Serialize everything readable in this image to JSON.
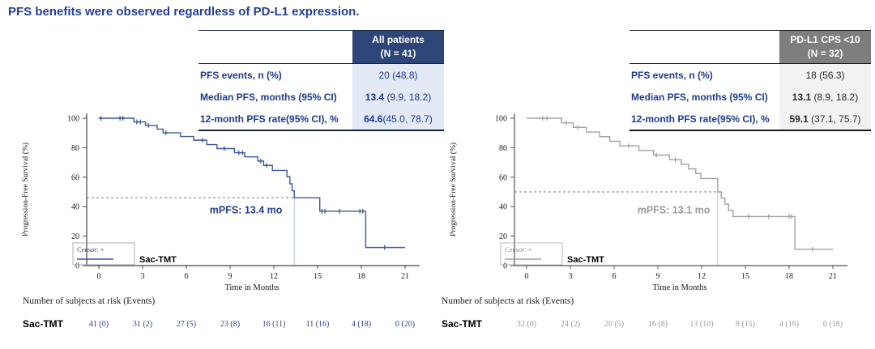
{
  "page": {
    "title": "PFS benefits were observed regardless of PD-L1 expression.",
    "title_color": "#243f94",
    "background": "#ffffff"
  },
  "summary_tables": [
    {
      "header": {
        "line1": "All patients",
        "line2": "(N = 41)"
      },
      "rows": [
        {
          "label": "PFS events, n (%)",
          "value_bold": "",
          "value_rest": "20 (48.8)"
        },
        {
          "label": "Median PFS, months (95% CI)",
          "value_bold": "13.4",
          "value_rest": " (9.9, 18.2)"
        },
        {
          "label": "12-month PFS rate(95% CI), %",
          "value_bold": "64.6",
          "value_rest": "(45.0, 78.7)"
        }
      ],
      "theme": {
        "header_bg": "#2d4577",
        "header_color": "#ffffff",
        "label_color": "#1e3a8c",
        "value_color": "#1e3a8c",
        "value_bg": "#e3eaf6",
        "border_color": "#16233f"
      }
    },
    {
      "header": {
        "line1": "PD-L1 CPS <10",
        "line2": "(N = 32)"
      },
      "rows": [
        {
          "label": "PFS events, n (%)",
          "value_bold": "",
          "value_rest": "18 (56.3)"
        },
        {
          "label": "Median PFS, months (95% CI)",
          "value_bold": "13.1",
          "value_rest": " (8.9, 18.2)"
        },
        {
          "label": "12-month PFS rate(95% CI), %",
          "value_bold": "59.1",
          "value_rest": " (37.1, 75.7)"
        }
      ],
      "theme": {
        "header_bg": "#7e7e7e",
        "header_color": "#ffffff",
        "label_color": "#1e3a8c",
        "value_color": "#2a2a2a",
        "value_bg": "#f2f2f2",
        "border_color": "#1a1a1a"
      }
    }
  ],
  "chart_data": [
    {
      "type": "line",
      "subtype": "kaplan-meier-step",
      "group": "All patients (N = 41)",
      "xlabel": "Time in Months",
      "ylabel": "Progression-Free Survival (%)",
      "xlim": [
        0,
        21
      ],
      "xticks": [
        0,
        3,
        6,
        9,
        12,
        15,
        18,
        21
      ],
      "ylim": [
        0,
        100
      ],
      "yticks": [
        0,
        20,
        40,
        60,
        80,
        100
      ],
      "series": [
        {
          "name": "Sac-TMT",
          "color": "#3c5898",
          "steps": [
            [
              0,
              100
            ],
            [
              2.4,
              97.5
            ],
            [
              3.2,
              95.1
            ],
            [
              4.0,
              92.6
            ],
            [
              4.4,
              90.1
            ],
            [
              5.6,
              87.6
            ],
            [
              6.5,
              85.1
            ],
            [
              7.4,
              82.1
            ],
            [
              8.1,
              79.4
            ],
            [
              9.3,
              76.6
            ],
            [
              10.0,
              73.8
            ],
            [
              10.9,
              70.9
            ],
            [
              11.3,
              68.0
            ],
            [
              11.9,
              64.6
            ],
            [
              12.9,
              60.3
            ],
            [
              13.1,
              55.5
            ],
            [
              13.25,
              50.8
            ],
            [
              13.4,
              46.0
            ],
            [
              15.15,
              36.9
            ],
            [
              18.3,
              12.3
            ],
            [
              21,
              12.3
            ]
          ],
          "censors": [
            [
              0.15,
              100
            ],
            [
              1.45,
              100
            ],
            [
              1.65,
              100
            ],
            [
              2.6,
              97.5
            ],
            [
              2.85,
              97.5
            ],
            [
              3.4,
              95.1
            ],
            [
              4.6,
              90.1
            ],
            [
              7.1,
              85.1
            ],
            [
              8.6,
              79.4
            ],
            [
              9.6,
              76.6
            ],
            [
              9.85,
              76.6
            ],
            [
              11.1,
              70.9
            ],
            [
              11.5,
              68.0
            ],
            [
              15.3,
              36.9
            ],
            [
              15.5,
              36.9
            ],
            [
              16.5,
              36.9
            ],
            [
              17.9,
              36.9
            ],
            [
              18.1,
              36.9
            ],
            [
              19.6,
              12.3
            ]
          ]
        }
      ],
      "median_line": {
        "time": 13.4,
        "survival": 46.0,
        "label": "mPFS: 13.4 mo"
      },
      "annotation": {
        "t": 7.6,
        "s": 35.5
      },
      "legend": {
        "censor_label": "Censor: +",
        "series_label": "Sac-TMT"
      },
      "at_risk": {
        "header": "Number of subjects at risk (Events)",
        "row_label": "Sac-TMT",
        "values": [
          "41 (0)",
          "31 (2)",
          "27 (5)",
          "23 (8)",
          "16 (11)",
          "11 (16)",
          "4 (18)",
          "0 (20)"
        ]
      },
      "theme": {
        "curve": "#3c5898",
        "annotation_color": "#24418c",
        "median_drop_color": "#b5c3da",
        "dashed_color": "#7f7f7f",
        "axis_color": "#444444",
        "tick_label_color": "#1a1a1a",
        "legend_text_color": "#2c4387",
        "legend_border": "#999999",
        "atrisk_value_color": "#2c4387"
      }
    },
    {
      "type": "line",
      "subtype": "kaplan-meier-step",
      "group": "PD-L1 CPS <10 (N = 32)",
      "xlabel": "Time in Months",
      "ylabel": "Progression-Free Survival (%)",
      "xlim": [
        0,
        21
      ],
      "xticks": [
        0,
        3,
        6,
        9,
        12,
        15,
        18,
        21
      ],
      "ylim": [
        0,
        100
      ],
      "yticks": [
        0,
        20,
        40,
        60,
        80,
        100
      ],
      "series": [
        {
          "name": "Sac-TMT",
          "color": "#a2a2a2",
          "steps": [
            [
              0,
              100
            ],
            [
              2.4,
              96.9
            ],
            [
              3.2,
              93.8
            ],
            [
              4.1,
              90.6
            ],
            [
              5.0,
              87.5
            ],
            [
              5.7,
              84.4
            ],
            [
              6.4,
              81.3
            ],
            [
              7.7,
              78.1
            ],
            [
              8.7,
              75.0
            ],
            [
              9.8,
              71.9
            ],
            [
              10.6,
              68.8
            ],
            [
              11.1,
              65.6
            ],
            [
              11.6,
              62.5
            ],
            [
              11.95,
              59.1
            ],
            [
              13.1,
              50.0
            ],
            [
              13.35,
              45.8
            ],
            [
              13.6,
              41.7
            ],
            [
              13.85,
              37.5
            ],
            [
              14.15,
              33.3
            ],
            [
              18.4,
              11.1
            ],
            [
              21,
              11.1
            ]
          ],
          "censors": [
            [
              1.1,
              100
            ],
            [
              1.4,
              100
            ],
            [
              2.7,
              96.9
            ],
            [
              3.5,
              93.8
            ],
            [
              7.0,
              81.3
            ],
            [
              8.9,
              75.0
            ],
            [
              10.2,
              71.9
            ],
            [
              15.2,
              33.3
            ],
            [
              16.6,
              33.3
            ],
            [
              18.0,
              33.3
            ],
            [
              18.15,
              33.3
            ],
            [
              19.6,
              11.1
            ]
          ]
        }
      ],
      "median_line": {
        "time": 13.1,
        "survival": 50.0,
        "label": "mPFS: 13.1 mo"
      },
      "annotation": {
        "t": 7.6,
        "s": 35.5
      },
      "legend": {
        "censor_label": "Censor: +",
        "series_label": "Sac-TMT"
      },
      "at_risk": {
        "header": "Number of subjects at risk (Events)",
        "row_label": "Sac-TMT",
        "values": [
          "32 (0)",
          "24 (2)",
          "20 (5)",
          "16 (8)",
          "13 (10)",
          "8 (15)",
          "4 (16)",
          "0 (18)"
        ]
      },
      "theme": {
        "curve": "#a2a2a2",
        "annotation_color": "#9b9b9b",
        "median_drop_color": "#c8c8c8",
        "dashed_color": "#7f7f7f",
        "axis_color": "#555555",
        "tick_label_color": "#1a1a1a",
        "legend_text_color": "#8a8a8a",
        "legend_border": "#aaaaaa",
        "atrisk_value_color": "#9a9a9a"
      }
    }
  ]
}
